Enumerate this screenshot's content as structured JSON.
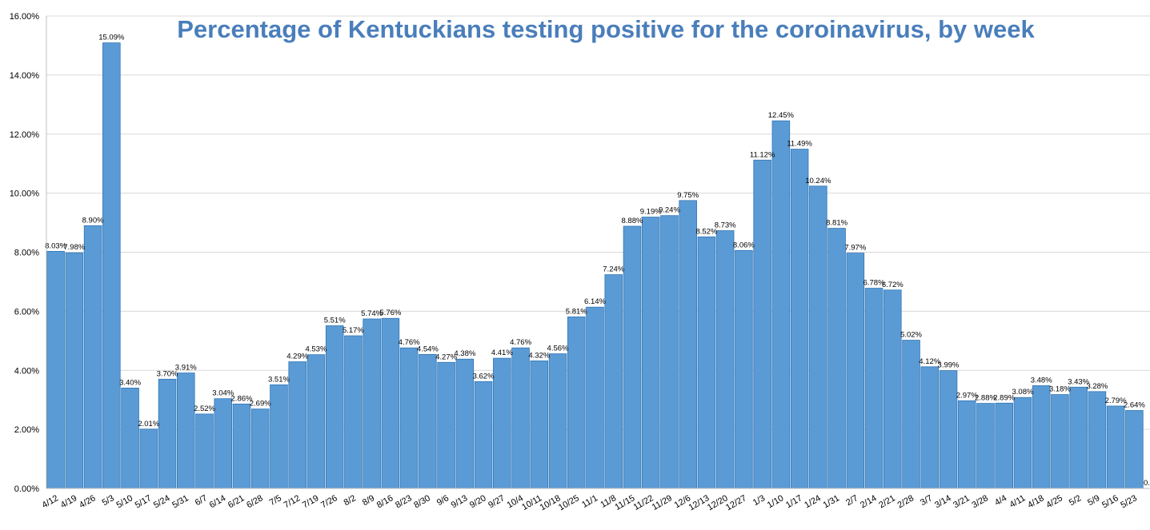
{
  "chart_data": {
    "type": "bar",
    "title": "Percentage of Kentuckians testing positive for the coroinavirus, by week",
    "xlabel": "",
    "ylabel": "",
    "ylim": [
      0,
      16
    ],
    "y_ticks": [
      "0.00%",
      "2.00%",
      "4.00%",
      "6.00%",
      "8.00%",
      "10.00%",
      "12.00%",
      "14.00%",
      "16.00%"
    ],
    "grid": "horizontal",
    "colors": {
      "bar": "#5b9bd5",
      "bar_edge": "#2e75b6",
      "title": "#4a7ebb",
      "grid": "#d9d9d9"
    },
    "categories": [
      "4/12",
      "4/19",
      "4/26",
      "5/3",
      "5/10",
      "5/17",
      "5/24",
      "5/31",
      "6/7",
      "6/14",
      "6/21",
      "6/28",
      "7/5",
      "7/12",
      "7/19",
      "7/26",
      "8/2",
      "8/9",
      "8/16",
      "8/23",
      "8/30",
      "9/6",
      "9/13",
      "9/20",
      "9/27",
      "10/4",
      "10/11",
      "10/18",
      "10/25",
      "11/1",
      "11/8",
      "11/15",
      "11/22",
      "11/29",
      "12/6",
      "12/13",
      "12/20",
      "12/27",
      "1/3",
      "1/10",
      "1/17",
      "1/24",
      "1/31",
      "2/7",
      "2/14",
      "2/21",
      "2/28",
      "3/7",
      "3/14",
      "3/21",
      "3/28",
      "4/4",
      "4/11",
      "4/18",
      "4/25",
      "5/2",
      "5/9",
      "5/16",
      "5/23"
    ],
    "values": [
      8.03,
      7.98,
      8.9,
      15.09,
      3.4,
      2.01,
      3.7,
      3.91,
      2.52,
      3.04,
      2.86,
      2.69,
      3.51,
      4.29,
      4.53,
      5.51,
      5.17,
      5.74,
      5.76,
      4.76,
      4.54,
      4.27,
      4.38,
      3.62,
      4.41,
      4.76,
      4.32,
      4.56,
      5.81,
      6.14,
      7.24,
      8.88,
      9.19,
      9.24,
      9.75,
      8.52,
      8.73,
      8.06,
      11.12,
      12.45,
      11.49,
      10.24,
      8.81,
      7.97,
      6.78,
      6.72,
      5.02,
      4.12,
      3.99,
      2.97,
      2.88,
      2.89,
      3.08,
      3.48,
      3.18,
      3.43,
      3.28,
      2.79,
      2.64
    ],
    "data_labels": [
      "8.03%",
      "7.98%",
      "8.90%",
      "15.09%",
      "3.40%",
      "2.01%",
      "3.70%",
      "3.91%",
      "2.52%",
      "3.04%",
      "2.86%",
      "2.69%",
      "3.51%",
      "4.29%",
      "4.53%",
      "5.51%",
      "5.17%",
      "5.74%",
      "5.76%",
      "4.76%",
      "4.54%",
      "4.27%",
      "4.38%",
      "3.62%",
      "4.41%",
      "4.76%",
      "4.32%",
      "4.56%",
      "5.81%",
      "6.14%",
      "7.24%",
      "8.88%",
      "9.19%",
      "9.24%",
      "9.75%",
      "8.52%",
      "8.73%",
      "8.06%",
      "11.12%",
      "12.45%",
      "11.49%",
      "10.24%",
      "8.81%",
      "7.97%",
      "6.78%",
      "6.72%",
      "5.02%",
      "4.12%",
      "3.99%",
      "2.97%",
      "2.88%",
      "2.89%",
      "3.08%",
      "3.48%",
      "3.18%",
      "3.43%",
      "3.28%",
      "2.79%",
      "2.64%"
    ],
    "trailing_label": "0."
  }
}
